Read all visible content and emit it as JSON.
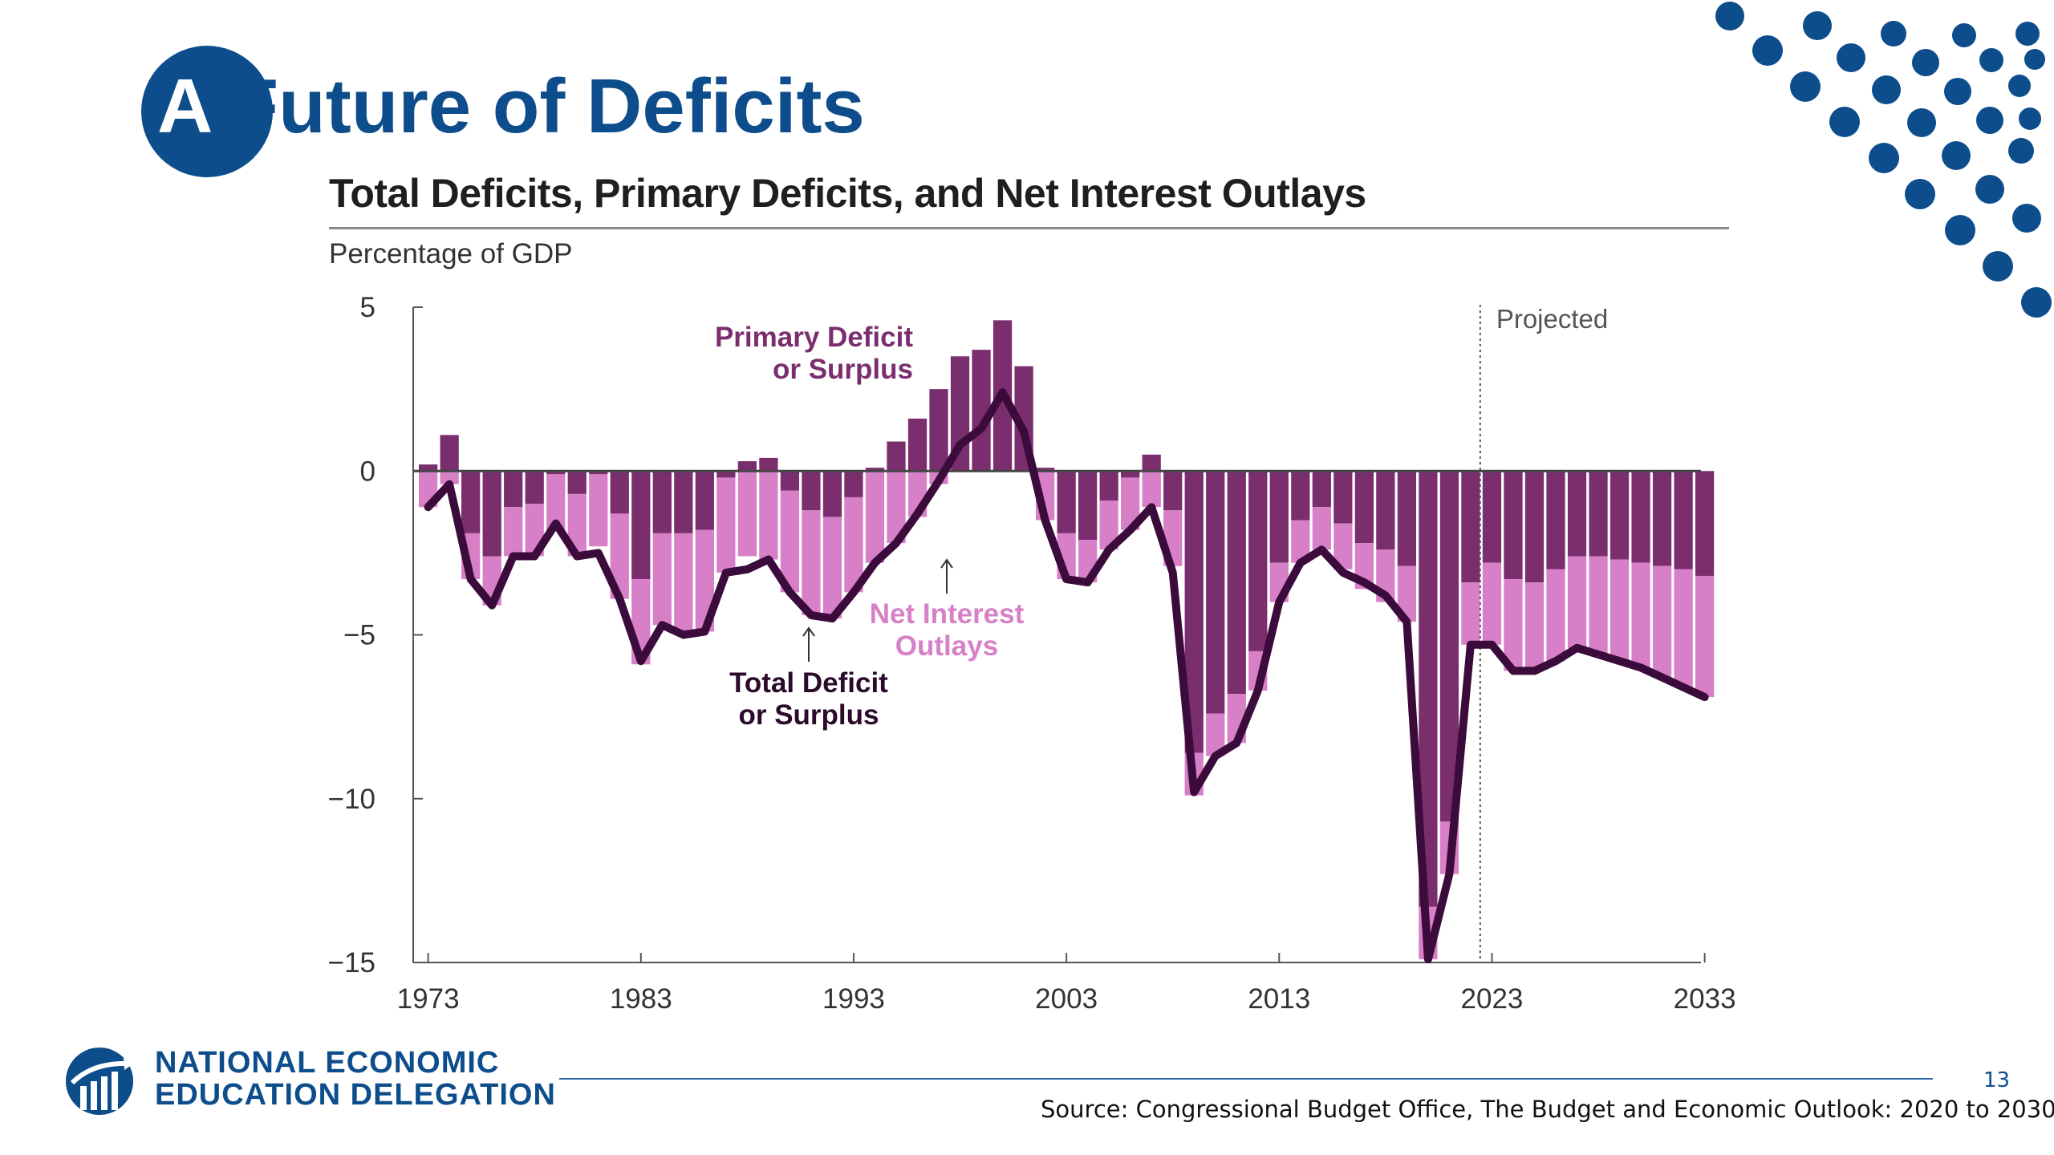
{
  "slide": {
    "title_first": "A",
    "title_rest": " Future of Deficits",
    "page_number": "13",
    "source": "Source: Congressional Budget Office, The Budget and Economic Outlook: 2020 to 2030",
    "org_line1": "NATIONAL ECONOMIC",
    "org_line2": "EDUCATION DELEGATION",
    "brand_color": "#0d4d8c"
  },
  "chart_data": {
    "type": "bar",
    "title": "Total Deficits, Primary Deficits, and Net Interest Outlays",
    "ylabel": "Percentage of GDP",
    "xlabel": "",
    "ylim": [
      -15,
      5
    ],
    "yticks": [
      5,
      0,
      -5,
      -10,
      -15
    ],
    "ytick_labels": [
      "5",
      "0",
      "−5",
      "−10",
      "−15"
    ],
    "xticks": [
      1973,
      1983,
      1993,
      2003,
      2013,
      2023,
      2033
    ],
    "x": [
      1973,
      1974,
      1975,
      1976,
      1977,
      1978,
      1979,
      1980,
      1981,
      1982,
      1983,
      1984,
      1985,
      1986,
      1987,
      1988,
      1989,
      1990,
      1991,
      1992,
      1993,
      1994,
      1995,
      1996,
      1997,
      1998,
      1999,
      2000,
      2001,
      2002,
      2003,
      2004,
      2005,
      2006,
      2007,
      2008,
      2009,
      2010,
      2011,
      2012,
      2013,
      2014,
      2015,
      2016,
      2017,
      2018,
      2019,
      2020,
      2021,
      2022,
      2023,
      2024,
      2025,
      2026,
      2027,
      2028,
      2029,
      2030,
      2031,
      2032,
      2033
    ],
    "series": [
      {
        "name": "Total Deficit or Surplus",
        "render": "line",
        "color": "#3b0b3b",
        "values": [
          -1.1,
          -0.4,
          -3.3,
          -4.1,
          -2.6,
          -2.6,
          -1.6,
          -2.6,
          -2.5,
          -3.9,
          -5.8,
          -4.7,
          -5.0,
          -4.9,
          -3.1,
          -3.0,
          -2.7,
          -3.7,
          -4.4,
          -4.5,
          -3.7,
          -2.8,
          -2.2,
          -1.3,
          -0.3,
          0.8,
          1.3,
          2.4,
          1.2,
          -1.5,
          -3.3,
          -3.4,
          -2.4,
          -1.8,
          -1.1,
          -3.1,
          -9.8,
          -8.7,
          -8.3,
          -6.7,
          -4.0,
          -2.8,
          -2.4,
          -3.1,
          -3.4,
          -3.8,
          -4.6,
          -14.9,
          -12.3,
          -5.3,
          -5.3,
          -6.1,
          -6.1,
          -5.8,
          -5.4,
          -5.6,
          -5.8,
          -6.0,
          -6.3,
          -6.6,
          -6.9
        ]
      },
      {
        "name": "Primary Deficit or Surplus",
        "render": "bar",
        "color": "#7a2e6e",
        "values": [
          0.2,
          1.1,
          -1.9,
          -2.6,
          -1.1,
          -1.0,
          -0.1,
          -0.7,
          -0.1,
          -1.3,
          -3.3,
          -1.9,
          -1.9,
          -1.8,
          -0.2,
          0.3,
          0.4,
          -0.6,
          -1.2,
          -1.4,
          -0.8,
          0.1,
          0.9,
          1.6,
          2.5,
          3.5,
          3.7,
          4.6,
          3.2,
          0.1,
          -1.9,
          -2.1,
          -0.9,
          -0.2,
          0.5,
          -1.2,
          -8.6,
          -7.4,
          -6.8,
          -5.5,
          -2.8,
          -1.5,
          -1.1,
          -1.6,
          -2.2,
          -2.4,
          -2.9,
          -13.3,
          -10.7,
          -3.4,
          -2.8,
          -3.3,
          -3.4,
          -3.0,
          -2.6,
          -2.6,
          -2.7,
          -2.8,
          -2.9,
          -3.0,
          -3.2
        ]
      },
      {
        "name": "Net Interest Outlays",
        "render": "bar",
        "color": "#d77fc7",
        "values": [
          1.3,
          1.5,
          1.4,
          1.5,
          1.5,
          1.6,
          1.7,
          1.9,
          2.2,
          2.6,
          2.6,
          2.8,
          3.1,
          3.1,
          2.9,
          2.9,
          3.1,
          3.1,
          3.2,
          3.1,
          2.9,
          2.9,
          3.1,
          3.0,
          2.9,
          2.7,
          2.5,
          2.2,
          2.0,
          1.6,
          1.4,
          1.3,
          1.5,
          1.6,
          1.6,
          1.7,
          1.3,
          1.3,
          1.5,
          1.2,
          1.2,
          1.3,
          1.3,
          1.4,
          1.4,
          1.6,
          1.7,
          1.6,
          1.6,
          1.9,
          2.5,
          2.8,
          2.7,
          2.8,
          2.8,
          3.0,
          3.1,
          3.2,
          3.4,
          3.6,
          3.7
        ]
      }
    ],
    "annotations": {
      "projected": "Projected",
      "primary_label": [
        "Primary Deficit",
        "or Surplus"
      ],
      "interest_label": [
        "Net Interest",
        "Outlays"
      ],
      "total_label": [
        "Total Deficit",
        "or Surplus"
      ]
    },
    "projected_from": 2023,
    "grid": false,
    "legend": "none"
  }
}
